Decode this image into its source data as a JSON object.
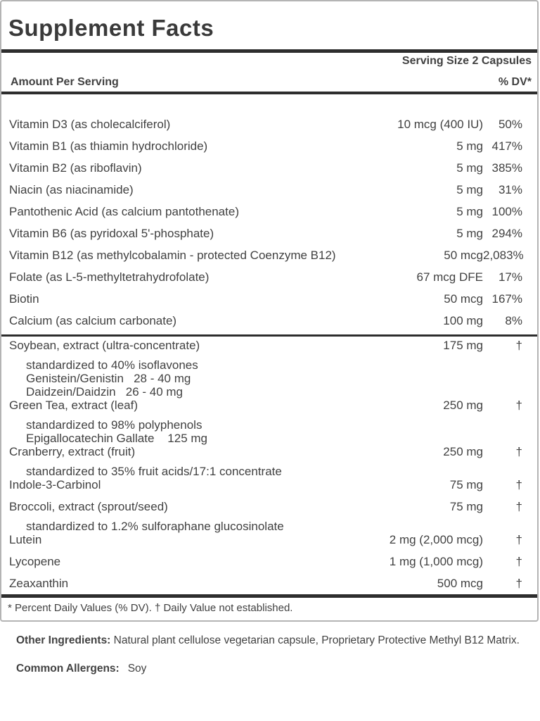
{
  "panel": {
    "title": "Supplement Facts",
    "serving_size": "Serving Size 2 Capsules",
    "header": {
      "left": "Amount Per Serving",
      "right": "% DV*"
    },
    "nutrients": [
      {
        "name": "Vitamin D3 (as cholecalciferol)",
        "amount": "10 mcg (400 IU)",
        "dv": "50%"
      },
      {
        "name": "Vitamin B1 (as thiamin hydrochloride)",
        "amount": "5 mg",
        "dv": "417%"
      },
      {
        "name": "Vitamin B2 (as riboflavin)",
        "amount": "5 mg",
        "dv": "385%"
      },
      {
        "name": "Niacin (as niacinamide)",
        "amount": "5 mg",
        "dv": "31%"
      },
      {
        "name": "Pantothenic Acid (as calcium pantothenate)",
        "amount": "5 mg",
        "dv": "100%"
      },
      {
        "name": "Vitamin B6 (as pyridoxal 5'-phosphate)",
        "amount": "5 mg",
        "dv": "294%"
      },
      {
        "name": "Vitamin B12 (as methylcobalamin - protected Coenzyme B12)",
        "amount": "50 mcg",
        "dv": "2,083%"
      },
      {
        "name": "Folate (as L-5-methyltetrahydrofolate)",
        "amount": "67 mcg DFE",
        "dv": "17%"
      },
      {
        "name": "Biotin",
        "amount": "50 mcg",
        "dv": "167%"
      },
      {
        "name": "Calcium (as calcium carbonate)",
        "amount": "100 mg",
        "dv": "8%"
      }
    ],
    "botanicals": [
      {
        "name": "Soybean, extract (ultra-concentrate)",
        "amount": "175 mg",
        "dv": "†",
        "subs": [
          "standardized to 40% isoflavones",
          "Genistein/Genistin   28 - 40 mg",
          "Daidzein/Daidzin   26 - 40 mg"
        ]
      },
      {
        "name": "Green Tea, extract (leaf)",
        "amount": "250 mg",
        "dv": "†",
        "subs": [
          "standardized to 98% polyphenols",
          "Epigallocatechin Gallate    125 mg"
        ]
      },
      {
        "name": "Cranberry, extract (fruit)",
        "amount": "250 mg",
        "dv": "†",
        "subs": [
          "standardized to 35% fruit acids/17:1 concentrate"
        ]
      },
      {
        "name": "Indole-3-Carbinol",
        "amount": "75 mg",
        "dv": "†",
        "subs": []
      },
      {
        "name": "Broccoli, extract (sprout/seed)",
        "amount": "75 mg",
        "dv": "†",
        "subs": [
          "standardized to 1.2% sulforaphane glucosinolate"
        ]
      },
      {
        "name": "Lutein",
        "amount": "2 mg (2,000 mcg)",
        "dv": "†",
        "subs": []
      },
      {
        "name": "Lycopene",
        "amount": "1 mg (1,000 mcg)",
        "dv": "†",
        "subs": []
      },
      {
        "name": "Zeaxanthin",
        "amount": "500 mcg",
        "dv": "†",
        "subs": []
      }
    ],
    "footnote": "* Percent Daily Values (% DV). † Daily Value not established."
  },
  "other_ingredients": {
    "label": "Other Ingredients:",
    "text": "Natural plant cellulose vegetarian capsule, Proprietary Protective Methyl B12 Matrix."
  },
  "allergens": {
    "label": "Common Allergens:",
    "text": "Soy"
  },
  "colors": {
    "text": "#414141",
    "rule": "#2d2d2d",
    "border": "#b4b4b4"
  }
}
